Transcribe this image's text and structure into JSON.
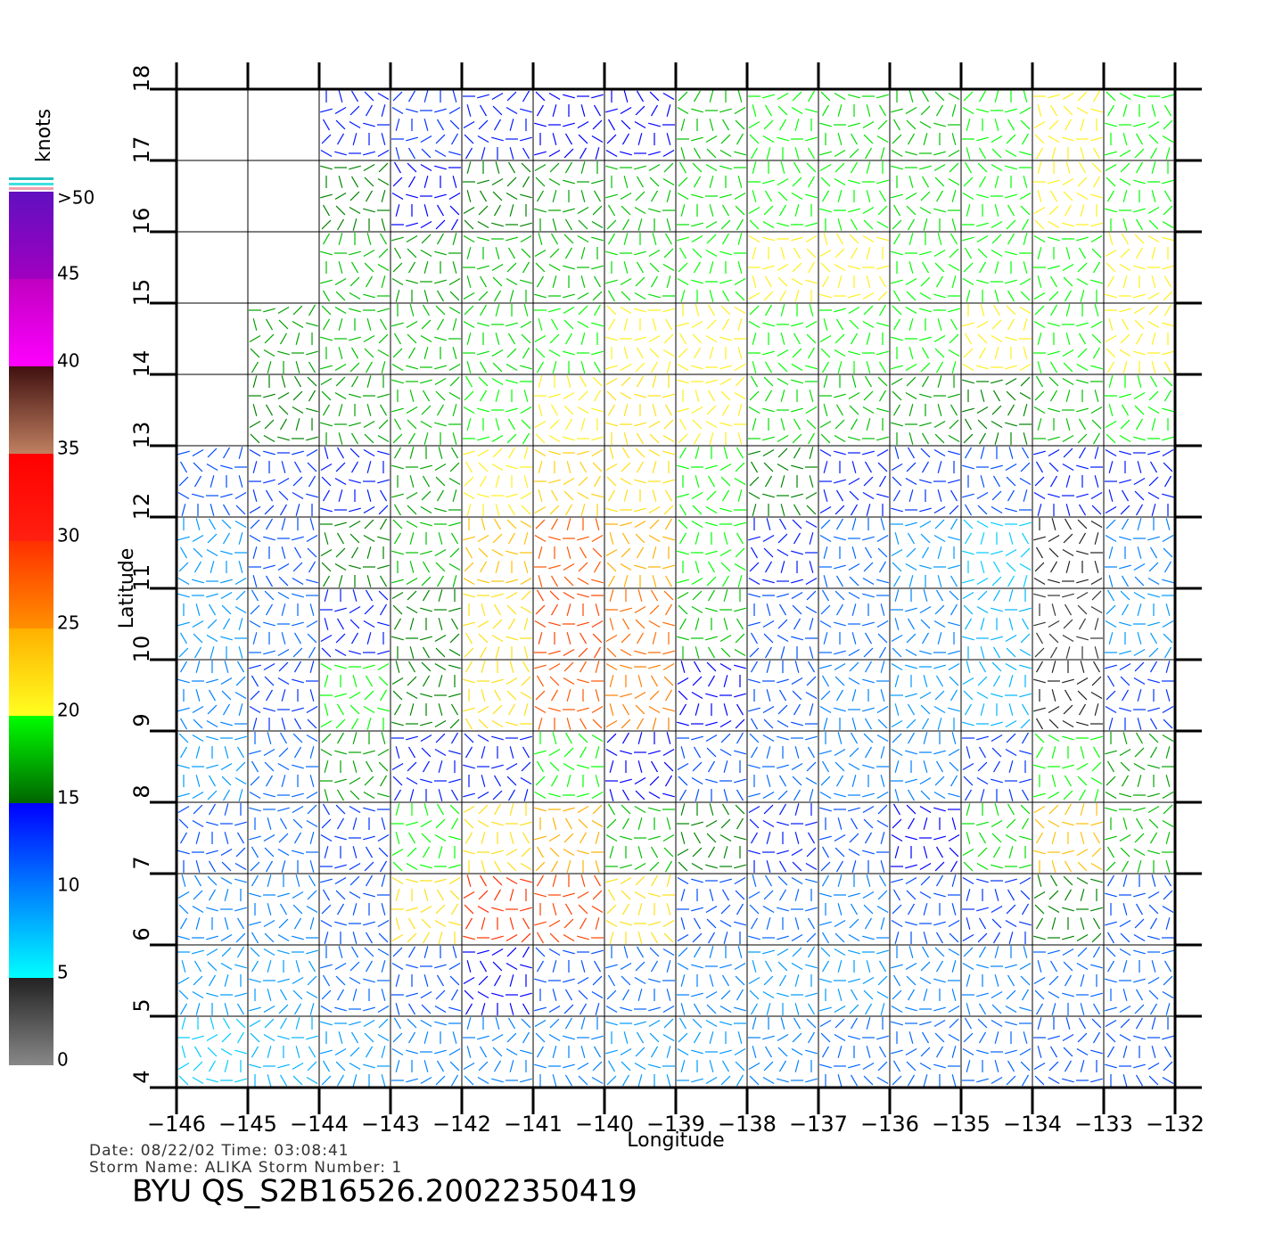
{
  "chart_data": {
    "type": "wind-field",
    "xlabel": "Longitude",
    "ylabel": "Latitude",
    "xlim": [
      -146,
      -132
    ],
    "ylim": [
      4,
      18
    ],
    "xticks": [
      {
        "value": -146,
        "label": "−146"
      },
      {
        "value": -145,
        "label": "−145"
      },
      {
        "value": -144,
        "label": "−144"
      },
      {
        "value": -143,
        "label": "−143"
      },
      {
        "value": -142,
        "label": "−142"
      },
      {
        "value": -141,
        "label": "−141"
      },
      {
        "value": -140,
        "label": "−140"
      },
      {
        "value": -139,
        "label": "−139"
      },
      {
        "value": -138,
        "label": "−138"
      },
      {
        "value": -137,
        "label": "−137"
      },
      {
        "value": -136,
        "label": "−136"
      },
      {
        "value": -135,
        "label": "−135"
      },
      {
        "value": -134,
        "label": "−134"
      },
      {
        "value": -133,
        "label": "−133"
      },
      {
        "value": -132,
        "label": "−132"
      }
    ],
    "yticks": [
      4,
      5,
      6,
      7,
      8,
      9,
      10,
      11,
      12,
      13,
      14,
      15,
      16,
      17,
      18
    ],
    "grid": true,
    "cell_lons": [
      -145.5,
      -144.5,
      -143.5,
      -142.5,
      -141.5,
      -140.5,
      -139.5,
      -138.5,
      -137.5,
      -136.5,
      -135.5,
      -134.5,
      -133.5,
      -132.5
    ],
    "cell_lats": [
      17.5,
      16.5,
      15.5,
      14.5,
      13.5,
      12.5,
      11.5,
      10.5,
      9.5,
      8.5,
      7.5,
      6.5,
      5.5,
      4.5
    ],
    "speeds": [
      [
        null,
        null,
        14,
        13,
        14,
        15,
        15,
        18,
        20,
        19,
        18,
        20,
        21,
        20
      ],
      [
        null,
        null,
        16,
        15,
        16,
        17,
        18,
        19,
        20,
        20,
        19,
        20,
        21,
        20
      ],
      [
        null,
        null,
        18,
        17,
        18,
        18,
        19,
        20,
        21,
        21,
        20,
        20,
        20,
        21
      ],
      [
        null,
        17,
        18,
        18,
        19,
        20,
        21,
        21,
        20,
        20,
        20,
        21,
        20,
        21
      ],
      [
        null,
        16,
        17,
        18,
        20,
        21,
        22,
        21,
        19,
        18,
        17,
        16,
        18,
        20
      ],
      [
        12,
        13,
        14,
        17,
        21,
        23,
        22,
        20,
        16,
        14,
        13,
        12,
        14,
        14
      ],
      [
        9,
        12,
        16,
        18,
        24,
        28,
        25,
        20,
        14,
        11,
        9,
        7,
        5,
        10
      ],
      [
        9,
        11,
        14,
        16,
        22,
        29,
        27,
        18,
        12,
        11,
        10,
        8,
        4,
        9
      ],
      [
        10,
        13,
        20,
        16,
        22,
        28,
        26,
        15,
        12,
        10,
        9,
        8,
        5,
        13
      ],
      [
        9,
        11,
        17,
        14,
        14,
        20,
        15,
        12,
        11,
        10,
        10,
        13,
        20,
        17
      ],
      [
        12,
        11,
        13,
        20,
        22,
        25,
        18,
        16,
        14,
        12,
        15,
        19,
        24,
        18
      ],
      [
        10,
        10,
        12,
        22,
        30,
        29,
        22,
        12,
        11,
        10,
        12,
        13,
        16,
        12
      ],
      [
        9,
        9,
        11,
        12,
        15,
        12,
        11,
        10,
        9,
        9,
        10,
        10,
        11,
        11
      ],
      [
        7,
        8,
        9,
        10,
        10,
        10,
        9,
        9,
        10,
        11,
        11,
        11,
        12,
        12
      ]
    ],
    "colorbar": {
      "title": "knots",
      "lim": [
        0,
        50
      ],
      "ticks": [
        0,
        5,
        10,
        15,
        20,
        25,
        30,
        35,
        40,
        45,
        {
          "value": 50,
          "label": ">50"
        }
      ],
      "segments": [
        {
          "from": 0,
          "to": 5,
          "colors": [
            "#888888",
            "#222222"
          ]
        },
        {
          "from": 5,
          "to": 10,
          "colors": [
            "#00ffff",
            "#0080ff"
          ]
        },
        {
          "from": 10,
          "to": 15,
          "colors": [
            "#0080ff",
            "#0000ff"
          ]
        },
        {
          "from": 15,
          "to": 20,
          "colors": [
            "#006400",
            "#00ff00"
          ]
        },
        {
          "from": 20,
          "to": 25,
          "colors": [
            "#ffff20",
            "#ffb000"
          ]
        },
        {
          "from": 25,
          "to": 30,
          "colors": [
            "#ff9000",
            "#ff3000"
          ]
        },
        {
          "from": 30,
          "to": 35,
          "colors": [
            "#ff2010",
            "#ff0000"
          ]
        },
        {
          "from": 35,
          "to": 40,
          "colors": [
            "#c08060",
            "#401010"
          ]
        },
        {
          "from": 40,
          "to": 45,
          "colors": [
            "#ff00ff",
            "#c000c0"
          ]
        },
        {
          "from": 45,
          "to": 50,
          "colors": [
            "#a000c0",
            "#6010c0"
          ]
        }
      ]
    },
    "info_lines": [
      "Date: 08/22/02   Time: 03:08:41",
      "Storm Name: ALIKA   Storm Number: 1"
    ],
    "source": "BYU  QS_S2B16526.20022350419"
  }
}
